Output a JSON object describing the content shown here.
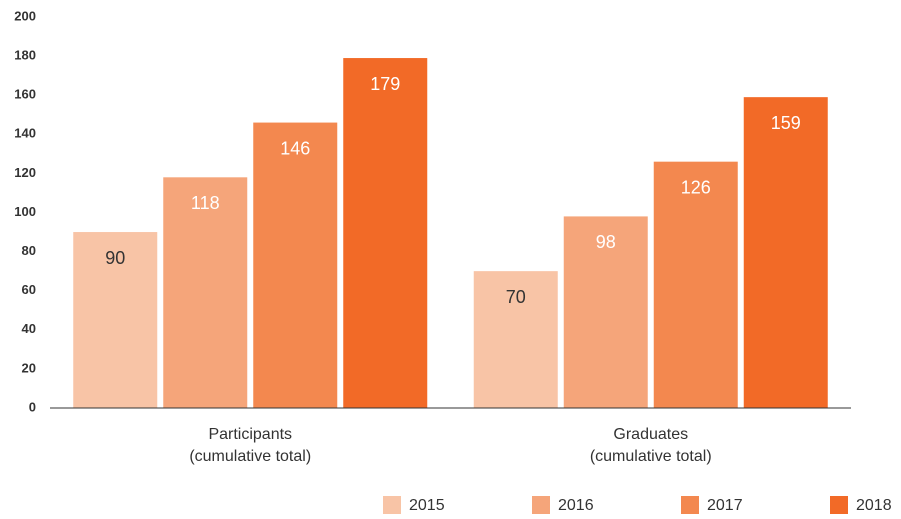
{
  "chart_data": {
    "type": "bar",
    "categories": [
      "Participants\n(cumulative total)",
      "Graduates\n(cumulative total)"
    ],
    "series": [
      {
        "name": "2015",
        "color": "#f8c4a6",
        "label_color": "#333333",
        "values": [
          90,
          70
        ]
      },
      {
        "name": "2016",
        "color": "#f5a57a",
        "label_color": "#ffffff",
        "values": [
          118,
          98
        ]
      },
      {
        "name": "2017",
        "color": "#f3884f",
        "label_color": "#ffffff",
        "values": [
          146,
          126
        ]
      },
      {
        "name": "2018",
        "color": "#f26a27",
        "label_color": "#ffffff",
        "values": [
          179,
          159
        ]
      }
    ],
    "ylim": [
      0,
      200
    ],
    "yticks": [
      0,
      20,
      40,
      60,
      80,
      100,
      120,
      140,
      160,
      180,
      200
    ],
    "grid": false,
    "legend": "bottom-right"
  }
}
